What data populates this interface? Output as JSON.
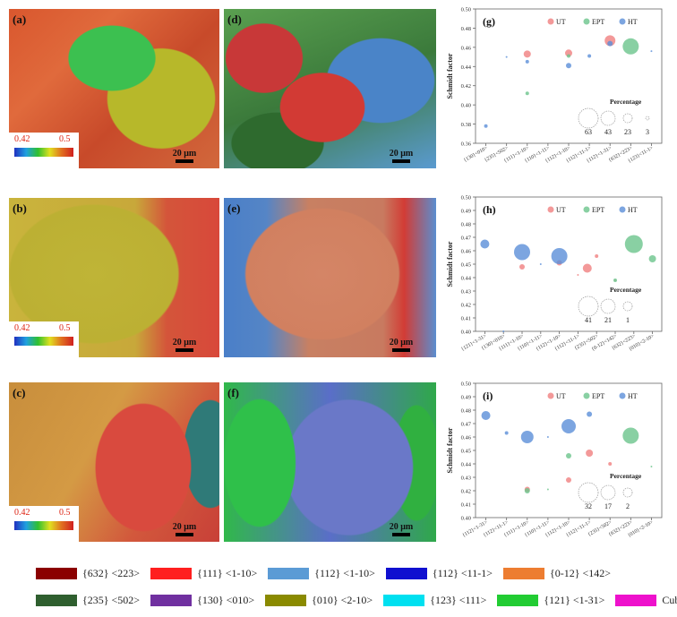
{
  "panels": [
    {
      "id": "a",
      "label": "(a)",
      "scale": "20 μm",
      "key_min": "0.42",
      "key_max": "0.5"
    },
    {
      "id": "d",
      "label": "(d)",
      "scale": "20 μm"
    },
    {
      "id": "b",
      "label": "(b)",
      "scale": "20 μm",
      "key_min": "0.42",
      "key_max": "0.5"
    },
    {
      "id": "e",
      "label": "(e)",
      "scale": "20 μm"
    },
    {
      "id": "c",
      "label": "(c)",
      "scale": "20 μm",
      "key_min": "0.42",
      "key_max": "0.5"
    },
    {
      "id": "f",
      "label": "(f)",
      "scale": "20 μm"
    }
  ],
  "chart_data": [
    {
      "panel": "(g)",
      "type": "scatter",
      "ylabel": "Schmidt factor",
      "ylim": [
        0.36,
        0.5
      ],
      "yticks": [
        "0.36",
        "0.38",
        "0.40",
        "0.42",
        "0.44",
        "0.46",
        "0.48",
        "0.50"
      ],
      "categories": [
        "{130}<010>",
        "{235}<502>",
        "{111}<1-10>",
        "{110}<1-11>",
        "{112}<1-10>",
        "{112}<11-1>",
        "{112}<1-31>",
        "{632}<223>",
        "{123}<11-1>"
      ],
      "series": [
        {
          "name": "UT",
          "color": "#f08080",
          "points": [
            [
              2,
              0.453,
              4
            ],
            [
              4,
              0.454,
              4
            ],
            [
              6,
              0.467,
              6
            ]
          ]
        },
        {
          "name": "EPT",
          "color": "#6cc48c",
          "points": [
            [
              2,
              0.412,
              2
            ],
            [
              4,
              0.451,
              2
            ],
            [
              7,
              0.461,
              9
            ]
          ]
        },
        {
          "name": "HT",
          "color": "#5b8ed8",
          "points": [
            [
              0,
              0.378,
              2
            ],
            [
              1,
              0.45,
              1
            ],
            [
              2,
              0.445,
              2
            ],
            [
              4,
              0.441,
              3
            ],
            [
              5,
              0.451,
              2
            ],
            [
              6,
              0.464,
              3
            ],
            [
              8,
              0.456,
              1
            ]
          ]
        }
      ],
      "size_legend": {
        "title": "Percentage",
        "values": [
          "63",
          "43",
          "23",
          "3"
        ]
      }
    },
    {
      "panel": "(h)",
      "type": "scatter",
      "ylabel": "Schmidt factor",
      "ylim": [
        0.4,
        0.5
      ],
      "yticks": [
        "0.40",
        "0.41",
        "0.42",
        "0.43",
        "0.44",
        "0.45",
        "0.46",
        "0.47",
        "0.48",
        "0.49",
        "0.50"
      ],
      "categories": [
        "{121}<1-31>",
        "{130}<010>",
        "{111}<1-10>",
        "{110}<1-11>",
        "{112}<1-10>",
        "{112}<11-1>",
        "{235}<502>",
        "{0-12}<142>",
        "{632}<223>",
        "{010}<2-10>"
      ],
      "series": [
        {
          "name": "UT",
          "color": "#f08080",
          "points": [
            [
              2,
              0.448,
              3
            ],
            [
              4,
              0.451,
              3
            ],
            [
              5,
              0.442,
              1
            ],
            [
              5.5,
              0.447,
              5
            ],
            [
              6,
              0.456,
              2
            ],
            [
              7,
              0.438,
              1
            ]
          ]
        },
        {
          "name": "EPT",
          "color": "#6cc48c",
          "points": [
            [
              7,
              0.438,
              2
            ],
            [
              8,
              0.465,
              10
            ],
            [
              9,
              0.454,
              4
            ]
          ]
        },
        {
          "name": "HT",
          "color": "#5b8ed8",
          "points": [
            [
              0,
              0.465,
              5
            ],
            [
              1,
              0.4,
              1
            ],
            [
              2,
              0.459,
              9
            ],
            [
              3,
              0.45,
              1
            ],
            [
              4,
              0.456,
              9
            ]
          ]
        }
      ],
      "size_legend": {
        "title": "Percentage",
        "values": [
          "41",
          "21",
          "1"
        ]
      }
    },
    {
      "panel": "(i)",
      "type": "scatter",
      "ylabel": "Schmidt factor",
      "ylim": [
        0.4,
        0.5
      ],
      "yticks": [
        "0.40",
        "0.41",
        "0.42",
        "0.43",
        "0.44",
        "0.45",
        "0.46",
        "0.47",
        "0.48",
        "0.49",
        "0.50"
      ],
      "categories": [
        "{112}<1-31>",
        "{112}<11-1>",
        "{111}<1-10>",
        "{110}<1-11>",
        "{112}<1-10>",
        "{112}<11-1>",
        "{235}<502>",
        "{632}<223>",
        "{010}<2-10>"
      ],
      "series": [
        {
          "name": "UT",
          "color": "#f08080",
          "points": [
            [
              2,
              0.421,
              3
            ],
            [
              4,
              0.428,
              3
            ],
            [
              5,
              0.448,
              4
            ],
            [
              6,
              0.44,
              2
            ]
          ]
        },
        {
          "name": "EPT",
          "color": "#6cc48c",
          "points": [
            [
              2,
              0.42,
              3
            ],
            [
              3,
              0.421,
              1
            ],
            [
              4,
              0.446,
              3
            ],
            [
              7,
              0.461,
              9
            ],
            [
              8,
              0.438,
              1
            ]
          ]
        },
        {
          "name": "HT",
          "color": "#5b8ed8",
          "points": [
            [
              0,
              0.476,
              5
            ],
            [
              1,
              0.463,
              2
            ],
            [
              2,
              0.46,
              7
            ],
            [
              3,
              0.46,
              1
            ],
            [
              4,
              0.468,
              8
            ],
            [
              5,
              0.477,
              3
            ]
          ]
        }
      ],
      "size_legend": {
        "title": "Percentage",
        "values": [
          "32",
          "17",
          "2"
        ]
      }
    }
  ],
  "legend": [
    {
      "label": "{632} <223>",
      "color": "#8b0000"
    },
    {
      "label": "{111} <1-10>",
      "color": "#ff1f1f"
    },
    {
      "label": "{112} <1-10>",
      "color": "#5b9bd5"
    },
    {
      "label": "{112} <11-1>",
      "color": "#1010d0"
    },
    {
      "label": "{0-12} <142>",
      "color": "#ed7d31"
    },
    {
      "label": "{235} <502>",
      "color": "#2f5f2f"
    },
    {
      "label": "{130} <010>",
      "color": "#7030a0"
    },
    {
      "label": "{010} <2-10>",
      "color": "#8a8a00"
    },
    {
      "label": "{123} <111>",
      "color": "#00e0f0"
    },
    {
      "label": "{121} <1-31>",
      "color": "#22cc33"
    },
    {
      "label": "Cube",
      "color": "#ee11cc"
    }
  ]
}
